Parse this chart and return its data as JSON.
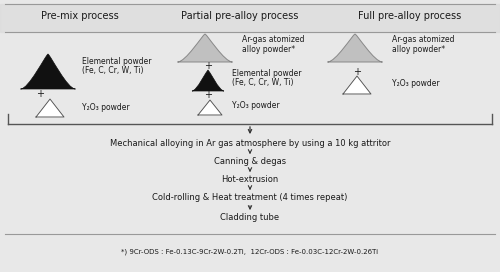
{
  "col_headers": [
    "Pre-mix process",
    "Partial pre-alloy process",
    "Full pre-alloy process"
  ],
  "footnote": "*) 9Cr-ODS : Fe-0.13C-9Cr-2W-0.2Ti,  12Cr-ODS : Fe-0.03C-12Cr-2W-0.26Ti",
  "process_steps": [
    "Mechanical alloying in Ar gas atmosphere by using a 10 kg attritor",
    "Canning & degas",
    "Hot-extrusion",
    "Cold-rolling & Heat treatment (4 times repeat)",
    "Cladding tube"
  ],
  "bg_color": "#e8e8e8",
  "text_color": "#1a1a1a"
}
